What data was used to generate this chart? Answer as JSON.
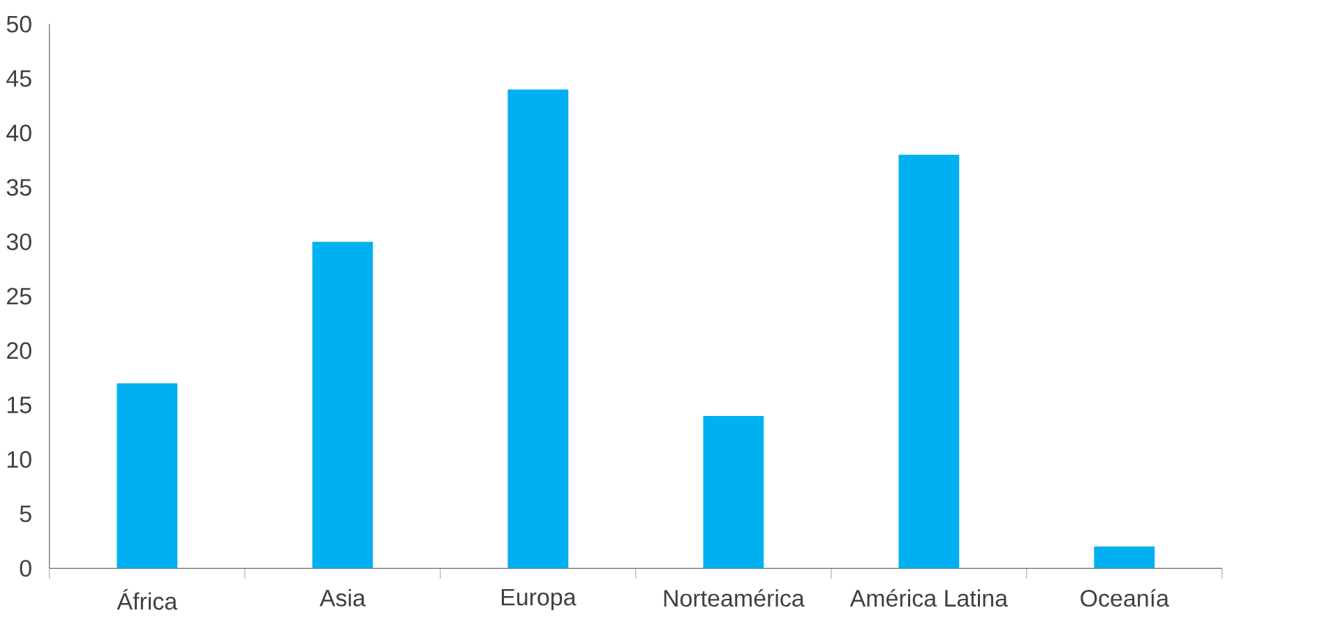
{
  "chart_data": {
    "type": "bar",
    "categories": [
      "África",
      "Asia",
      "Europa",
      "Norteamérica",
      "América Latina",
      "Oceanía"
    ],
    "values": [
      17,
      30,
      44,
      14,
      38,
      2
    ],
    "color": "#00b0f0",
    "ylim": [
      0,
      50
    ],
    "yticks": [
      0,
      5,
      10,
      15,
      20,
      25,
      30,
      35,
      40,
      45,
      50
    ]
  }
}
